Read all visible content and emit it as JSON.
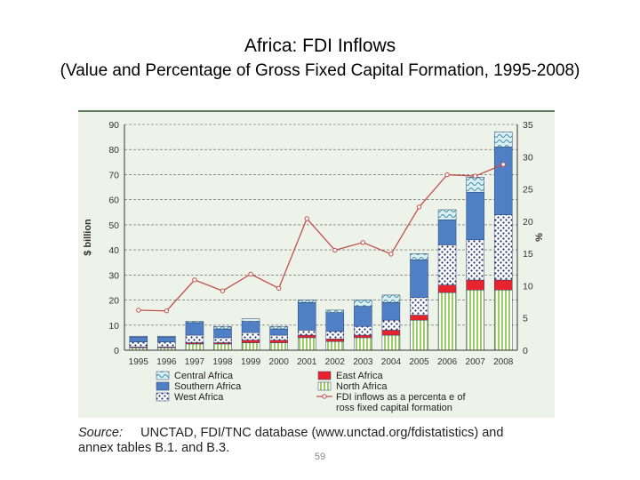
{
  "title": "Africa: FDI Inflows",
  "subtitle": "(Value and Percentage of Gross Fixed Capital Formation, 1995-2008)",
  "source": {
    "label": "Source:",
    "line1": "UNCTAD, FDI/TNC database (www.unctad.org/fdistatistics) and",
    "line2": "annex tables B.1. and B.3."
  },
  "page_number": "59",
  "colors": {
    "central": "#a9d6df",
    "southern": "#4f7fc4",
    "west": "#1f2f6e",
    "east": "#e8232b",
    "north": "#c8e6a0",
    "line": "#c0504d"
  },
  "chart_data": {
    "type": "bar",
    "stacked": true,
    "categories": [
      "1995",
      "1996",
      "1997",
      "1998",
      "1999",
      "2000",
      "2001",
      "2002",
      "2003",
      "2004",
      "2005",
      "2006",
      "2007",
      "2008"
    ],
    "series": [
      {
        "name": "North Africa",
        "values": [
          1,
          1,
          2.5,
          2.5,
          3,
          3,
          5,
          3.5,
          5,
          6,
          12,
          23,
          24,
          24
        ]
      },
      {
        "name": "East Africa",
        "values": [
          0.3,
          0.3,
          0.5,
          0.5,
          1,
          1,
          1,
          1,
          1,
          2,
          2,
          3,
          4,
          4
        ]
      },
      {
        "name": "West Africa",
        "values": [
          2,
          2,
          3,
          2,
          3,
          2,
          2,
          3,
          3.5,
          4,
          7,
          16,
          16,
          26
        ]
      },
      {
        "name": "Southern Africa",
        "values": [
          2,
          2,
          5,
          3.5,
          4.5,
          2.5,
          11,
          7.5,
          8,
          7,
          15,
          10,
          19,
          27
        ]
      },
      {
        "name": "Central Africa",
        "values": [
          0.3,
          0.3,
          0.5,
          1,
          1,
          1,
          1,
          1,
          2.5,
          3,
          2.5,
          4,
          6,
          6
        ]
      }
    ],
    "line_series": {
      "name": "FDI inflows as a percentage of gross fixed capital formation",
      "values": [
        6.2,
        6.1,
        10.9,
        9.2,
        11.8,
        9.6,
        20.4,
        15.5,
        16.7,
        14.9,
        22.2,
        27.2,
        27.0,
        28.8
      ]
    },
    "ylabel": "$ billion",
    "y2label": "%",
    "ylim": [
      0,
      90
    ],
    "y2lim": [
      0,
      35
    ],
    "yticks": [
      "0",
      "10",
      "20",
      "30",
      "40",
      "50",
      "60",
      "70",
      "80",
      "90"
    ],
    "y2ticks": [
      "0",
      "5",
      "10",
      "15",
      "20",
      "25",
      "30",
      "35"
    ],
    "legend": {
      "central": "Central Africa",
      "southern": "Southern Africa",
      "west": "West Africa",
      "east": "East Africa",
      "north": "North Africa",
      "line1": "FDI inflows as a percenta e of",
      "line2": "ross fixed capital formation"
    },
    "grid": true,
    "legend_position": "bottom"
  }
}
